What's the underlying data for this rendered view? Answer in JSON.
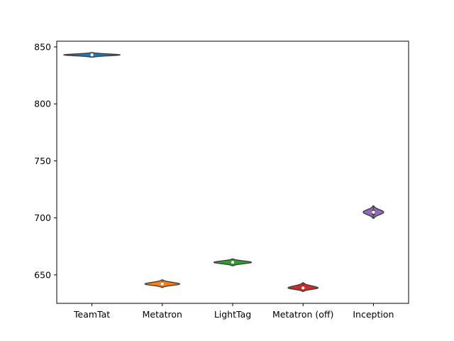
{
  "chart_data": {
    "type": "violin",
    "title": "",
    "xlabel": "",
    "ylabel": "",
    "categories": [
      "TeamTat",
      "Metatron",
      "LightTag",
      "Metatron (off)",
      "Inception"
    ],
    "ylim": [
      625,
      855
    ],
    "yticks": [
      650,
      700,
      750,
      800,
      850
    ],
    "series": [
      {
        "category": "TeamTat",
        "median": 843,
        "q1": 842.5,
        "q3": 843.5,
        "min": 841,
        "max": 845,
        "color": "#1f77b4"
      },
      {
        "category": "Metatron",
        "median": 642,
        "q1": 641,
        "q3": 643,
        "min": 639,
        "max": 645.5,
        "color": "#ff7f0e"
      },
      {
        "category": "LightTag",
        "median": 661,
        "q1": 660,
        "q3": 662,
        "min": 658,
        "max": 664,
        "color": "#2ca02c"
      },
      {
        "category": "Metatron (off)",
        "median": 638.5,
        "q1": 637.5,
        "q3": 640,
        "min": 635.5,
        "max": 643,
        "color": "#d62728"
      },
      {
        "category": "Inception",
        "median": 705,
        "q1": 702.5,
        "q3": 707,
        "min": 699.5,
        "max": 710.5,
        "color": "#9467bd"
      }
    ],
    "grid": false,
    "legend": "none"
  }
}
